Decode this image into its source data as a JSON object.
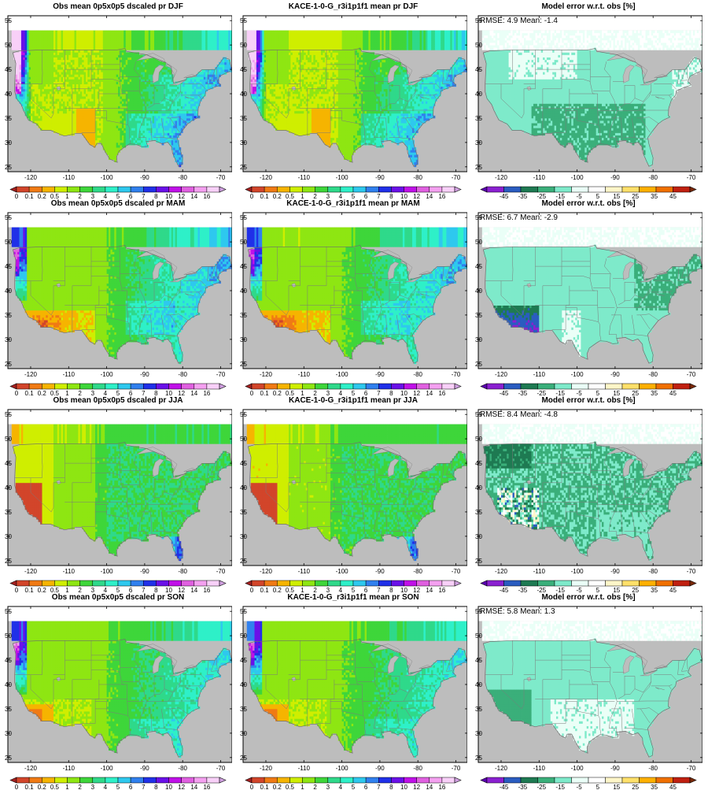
{
  "colors": {
    "land_missing": "#bdbdbd",
    "precip_scale": [
      "#a52020",
      "#d2452a",
      "#f07a14",
      "#f6b400",
      "#cfee00",
      "#8ee612",
      "#3ed63a",
      "#2fd98a",
      "#2ef0c8",
      "#2ec8ee",
      "#3080ee",
      "#2030e8",
      "#6a10e8",
      "#c010e8",
      "#e060e0",
      "#f4a0f0",
      "#f8d0f8",
      "#d0a0e0"
    ],
    "error_scale": [
      "#5a00b0",
      "#8a20d0",
      "#2a5cc0",
      "#1e7a52",
      "#3aaf7a",
      "#7eeaca",
      "#eafff7",
      "#ffffff",
      "#fff6c8",
      "#ffe06a",
      "#ffb000",
      "#f07000",
      "#c02010",
      "#7a2808"
    ]
  },
  "colorbars": {
    "precip_labels": [
      "0",
      "0.1",
      "0.2",
      "0.5",
      "1",
      "2",
      "3",
      "4",
      "5",
      "6",
      "7",
      "8",
      "10",
      "12",
      "14",
      "16"
    ],
    "error_labels": [
      "-45",
      "-35",
      "-25",
      "-15",
      "-5",
      "5",
      "15",
      "25",
      "35",
      "45"
    ]
  },
  "axes": {
    "xticks": [
      "-120",
      "-110",
      "-100",
      "-90",
      "-80",
      "-70"
    ],
    "yticks": [
      "25",
      "30",
      "35",
      "40",
      "45",
      "50",
      "55"
    ]
  },
  "panels": [
    {
      "title": "Obs mean 0p5x0p5 dscaled pr DJF",
      "kind": "obs",
      "season": "DJF"
    },
    {
      "title": "KACE-1-0-G_r3i1p1f1 mean pr DJF",
      "kind": "model",
      "season": "DJF"
    },
    {
      "title": "Model error w.r.t. obs [%]",
      "kind": "error",
      "season": "DJF",
      "stats": "RMSE: 4.9  Mean: -1.4"
    },
    {
      "title": "Obs mean 0p5x0p5 dscaled pr MAM",
      "kind": "obs",
      "season": "MAM"
    },
    {
      "title": "KACE-1-0-G_r3i1p1f1 mean pr MAM",
      "kind": "model",
      "season": "MAM"
    },
    {
      "title": "Model error w.r.t. obs [%]",
      "kind": "error",
      "season": "MAM",
      "stats": "RMSE: 6.7  Mean: -2.9"
    },
    {
      "title": "Obs mean 0p5x0p5 dscaled pr JJA",
      "kind": "obs",
      "season": "JJA"
    },
    {
      "title": "KACE-1-0-G_r3i1p1f1 mean pr JJA",
      "kind": "model",
      "season": "JJA"
    },
    {
      "title": "Model error w.r.t. obs [%]",
      "kind": "error",
      "season": "JJA",
      "stats": "RMSE: 8.4  Mean: -4.8"
    },
    {
      "title": "Obs mean 0p5x0p5 dscaled pr SON",
      "kind": "obs",
      "season": "SON"
    },
    {
      "title": "KACE-1-0-G_r3i1p1f1 mean pr SON",
      "kind": "model",
      "season": "SON"
    },
    {
      "title": "Model error w.r.t. obs [%]",
      "kind": "error",
      "season": "SON",
      "stats": "RMSE: 5.8  Mean: 1.3"
    }
  ],
  "chart_data": {
    "type": "heatmap",
    "xlim": [
      -126,
      -67
    ],
    "ylim": [
      24,
      56
    ],
    "xticks": [
      -120,
      -110,
      -100,
      -90,
      -80,
      -70
    ],
    "yticks": [
      25,
      30,
      35,
      40,
      45,
      50,
      55
    ],
    "precip_levels": [
      0,
      0.1,
      0.2,
      0.5,
      1,
      2,
      3,
      4,
      5,
      6,
      7,
      8,
      10,
      12,
      14,
      16
    ],
    "error_levels": [
      -45,
      -35,
      -25,
      -15,
      -5,
      5,
      15,
      25,
      35,
      45
    ],
    "error_stats": [
      {
        "season": "DJF",
        "rmse": 4.9,
        "mean": -1.4
      },
      {
        "season": "MAM",
        "rmse": 6.7,
        "mean": -2.9
      },
      {
        "season": "JJA",
        "rmse": 8.4,
        "mean": -4.8
      },
      {
        "season": "SON",
        "rmse": 5.8,
        "mean": 1.3
      }
    ]
  }
}
